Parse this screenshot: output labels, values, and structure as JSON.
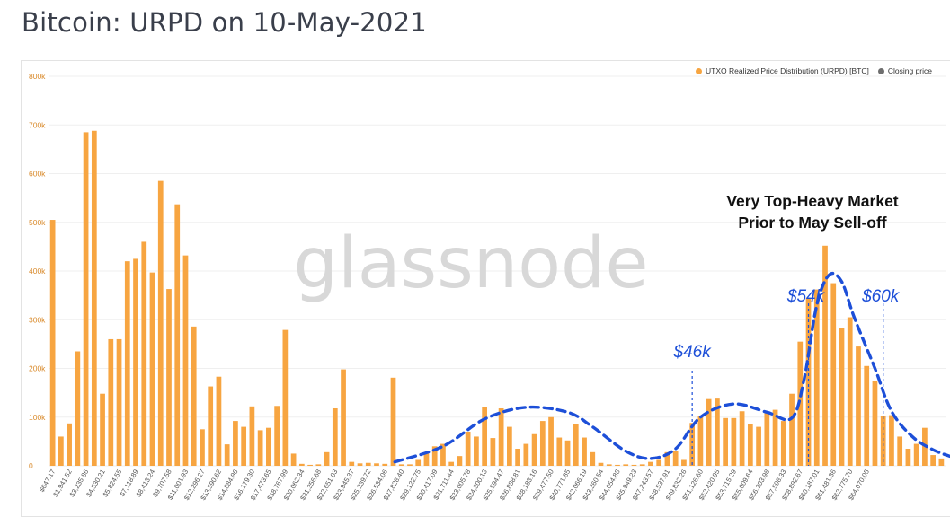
{
  "page": {
    "title": "Bitcoin: URPD on 10-May-2021"
  },
  "legend": [
    {
      "label": "UTXO Realized Price Distribution (URPD) [BTC]",
      "color": "#f7a541"
    },
    {
      "label": "Closing price",
      "color": "#6e6e6e"
    }
  ],
  "watermark": "glassnode",
  "annotations": {
    "heading_line1": "Very Top-Heavy Market",
    "heading_line2": "Prior to May Sell-off",
    "label_46k": "$46k",
    "label_54k": "$54k",
    "label_60k": "$60k"
  },
  "colors": {
    "bar": "#f7a541",
    "closing": "#6e6e6e",
    "annotation": "#1d4fd8",
    "axis_text": "#d98a2b"
  },
  "chart_data": {
    "type": "bar",
    "ylim": [
      0,
      800000
    ],
    "y_ticks": [
      "0",
      "100k",
      "200k",
      "300k",
      "400k",
      "500k",
      "600k",
      "700k",
      "800k"
    ],
    "closing_price_index": 124,
    "x_tick_labels": [
      "$647.17",
      "$1,941.52",
      "$3,235.86",
      "$4,530.21",
      "$5,824.55",
      "$7,118.89",
      "$8,413.24",
      "$9,707.58",
      "$11,001.93",
      "$12,296.27",
      "$13,590.62",
      "$14,884.96",
      "$16,179.30",
      "$17,473.65",
      "$18,767.99",
      "$20,062.34",
      "$21,356.68",
      "$22,651.03",
      "$23,945.37",
      "$25,239.72",
      "$26,534.06",
      "$27,828.40",
      "$29,122.75",
      "$30,417.09",
      "$31,711.44",
      "$33,005.78",
      "$34,300.13",
      "$35,594.47",
      "$36,888.81",
      "$38,183.16",
      "$39,477.50",
      "$40,771.85",
      "$42,066.19",
      "$43,360.54",
      "$44,654.88",
      "$45,949.23",
      "$47,243.57",
      "$48,537.91",
      "$49,832.26",
      "$51,126.60",
      "$52,420.95",
      "$53,715.29",
      "$55,009.64",
      "$56,303.98",
      "$57,598.33",
      "$58,892.67",
      "$60,187.01",
      "$61,481.36",
      "$62,775.70",
      "$64,070.05"
    ],
    "values": [
      505000,
      60000,
      87000,
      235000,
      685000,
      688000,
      148000,
      260000,
      260000,
      420000,
      425000,
      460000,
      397000,
      585000,
      363000,
      537000,
      432000,
      286000,
      75000,
      163000,
      183000,
      44000,
      92000,
      80000,
      122000,
      73000,
      78000,
      123000,
      279000,
      25000,
      4000,
      2000,
      3000,
      28000,
      118000,
      198000,
      8000,
      5000,
      6000,
      5000,
      4000,
      181000,
      3000,
      3000,
      12000,
      25000,
      40000,
      45000,
      8000,
      20000,
      70000,
      60000,
      120000,
      57000,
      118000,
      80000,
      35000,
      45000,
      65000,
      92000,
      100000,
      58000,
      52000,
      85000,
      58000,
      28000,
      6000,
      3000,
      2000,
      3000,
      2000,
      3000,
      8000,
      12000,
      28000,
      30000,
      12000,
      88000,
      102000,
      137000,
      138000,
      98000,
      98000,
      112000,
      85000,
      80000,
      108000,
      115000,
      92000,
      148000,
      255000,
      345000,
      362000,
      452000,
      375000,
      282000,
      305000,
      245000,
      205000,
      175000,
      102000,
      104000,
      60000,
      35000,
      45000,
      78000,
      22000,
      15000
    ]
  }
}
